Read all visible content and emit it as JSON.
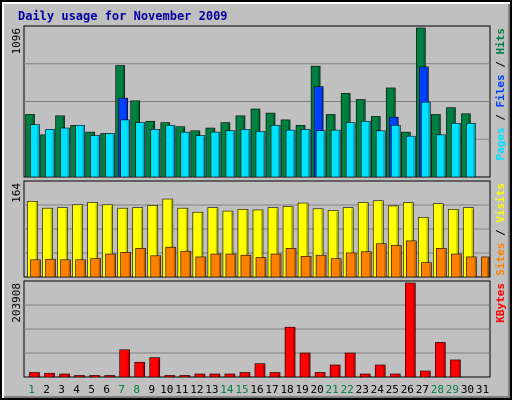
{
  "chart_data": {
    "type": "bar",
    "title": "Daily usage for November 2009",
    "categories": [
      "1",
      "2",
      "3",
      "4",
      "5",
      "6",
      "7",
      "8",
      "9",
      "10",
      "11",
      "12",
      "13",
      "14",
      "15",
      "16",
      "17",
      "18",
      "19",
      "20",
      "21",
      "22",
      "23",
      "24",
      "25",
      "26",
      "27",
      "28",
      "29",
      "30",
      "31"
    ],
    "weekend_days": [
      "1",
      "7",
      "8",
      "14",
      "15",
      "21",
      "22",
      "28",
      "29"
    ],
    "panels": [
      {
        "id": "hits-files-pages",
        "y_max_label": "1096",
        "y_max": 1096,
        "right_label": [
          "Pages",
          "Files",
          "Hits"
        ],
        "series": [
          {
            "name": "Hits",
            "color": "#008040",
            "values": [
              460,
              310,
              450,
              380,
              330,
              320,
              820,
              560,
              410,
              400,
              370,
              340,
              360,
              400,
              450,
              500,
              470,
              420,
              380,
              815,
              460,
              615,
              570,
              445,
              655,
              330,
              1096,
              460,
              510,
              465,
              null
            ]
          },
          {
            "name": "Files",
            "color": "#0040ff",
            "values": [
              null,
              null,
              null,
              null,
              null,
              null,
              580,
              null,
              null,
              null,
              null,
              null,
              null,
              null,
              null,
              null,
              null,
              null,
              null,
              665,
              null,
              null,
              null,
              null,
              440,
              null,
              810,
              null,
              null,
              null,
              null
            ]
          },
          {
            "name": "Pages",
            "color": "#00e0ff",
            "values": [
              385,
              350,
              360,
              380,
              305,
              320,
              420,
              400,
              350,
              380,
              330,
              305,
              330,
              340,
              350,
              335,
              380,
              345,
              350,
              340,
              345,
              400,
              410,
              340,
              380,
              300,
              550,
              310,
              395,
              395,
              null
            ]
          }
        ]
      },
      {
        "id": "visits-sites",
        "y_max_label": "164",
        "y_max": 164,
        "right_label": [
          "Sites",
          "Visits"
        ],
        "series": [
          {
            "name": "Visits",
            "color": "#ffff00",
            "values": [
              132,
              120,
              121,
              126,
              130,
              126,
              120,
              121,
              125,
              136,
              120,
              113,
              121,
              115,
              118,
              117,
              121,
              123,
              129,
              119,
              116,
              121,
              130,
              133,
              124,
              130,
              104,
              128,
              118,
              121,
              null
            ]
          },
          {
            "name": "Sites",
            "color": "#ff8000",
            "values": [
              30,
              31,
              30,
              30,
              32,
              40,
              43,
              50,
              37,
              52,
              45,
              35,
              40,
              40,
              38,
              34,
              40,
              50,
              36,
              38,
              32,
              42,
              44,
              58,
              55,
              63,
              25,
              50,
              40,
              35,
              35
            ]
          }
        ]
      },
      {
        "id": "kbytes",
        "y_max_label": "203908",
        "y_max": 203908,
        "right_label": [
          "KBytes"
        ],
        "series": [
          {
            "name": "KBytes",
            "color": "#ff0000",
            "values": [
              9800,
              8200,
              6500,
              3300,
              3300,
              3300,
              59000,
              32000,
              42000,
              3300,
              3300,
              6500,
              6500,
              6500,
              9800,
              29000,
              9800,
              108000,
              52000,
              9800,
              26000,
              52000,
              6500,
              26000,
              6500,
              203908,
              13000,
              75000,
              37000,
              null,
              null
            ]
          }
        ]
      }
    ]
  }
}
